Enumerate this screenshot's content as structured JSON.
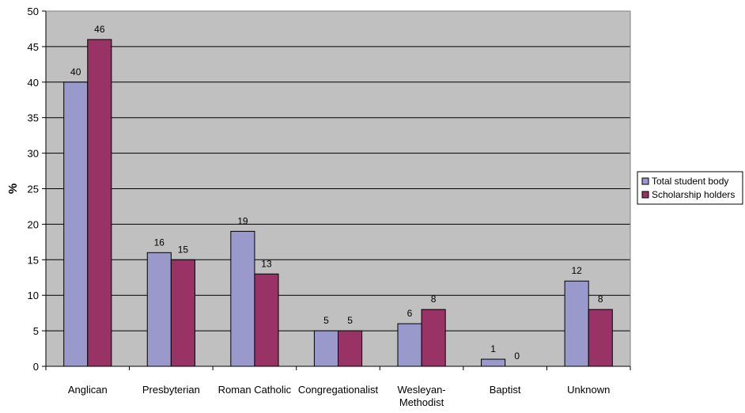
{
  "chart_data": {
    "type": "bar",
    "title": "",
    "xlabel": "",
    "ylabel": "%",
    "ylim": [
      0,
      50
    ],
    "y_ticks": [
      "0",
      "5",
      "10",
      "15",
      "20",
      "25",
      "30",
      "35",
      "40",
      "45",
      "50"
    ],
    "grid": true,
    "legend_position": "right",
    "categories": [
      [
        "Anglican"
      ],
      [
        "Presbyterian"
      ],
      [
        "Roman Catholic"
      ],
      [
        "Congregationalist"
      ],
      [
        "Wesleyan-",
        "Methodist"
      ],
      [
        "Baptist"
      ],
      [
        "Unknown"
      ]
    ],
    "series": [
      {
        "name": "Total student body",
        "color": "#9999cc",
        "values": [
          40,
          16,
          19,
          5,
          6,
          1,
          12
        ]
      },
      {
        "name": "Scholarship holders",
        "color": "#993366",
        "values": [
          46,
          15,
          13,
          5,
          8,
          0,
          8
        ]
      }
    ],
    "plot_background": "#c0c0c0",
    "gridline_color": "#000000"
  }
}
